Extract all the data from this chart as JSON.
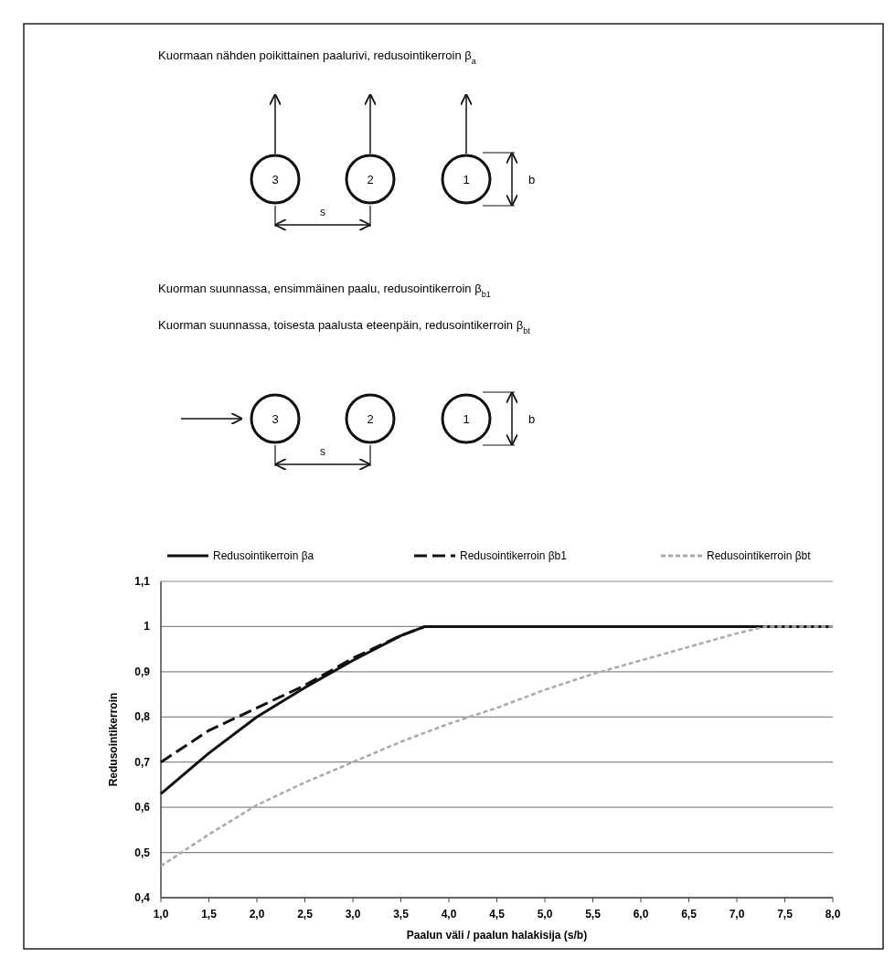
{
  "chart_data": {
    "type": "line",
    "annotations": [
      "Kuormaan nähden poikittainen paalurivi, redusointikerroin β$_{a}$",
      "3",
      "2",
      "1",
      "s",
      "b",
      "Kuorman suunnassa, ensimmäinen paalu, redusointikerroin β$_{b1}$",
      "Kuorman suunnassa, toisesta paalusta eteenpäin, redusointikerroin β$_{bt}$",
      "3",
      "2",
      "1",
      "s",
      "b"
    ],
    "xlabel": "Paalun väli / paalun halakisija (s/b)",
    "ylabel": "Redusointikerroin",
    "xlim": [
      1,
      8
    ],
    "ylim": [
      0.4,
      1.1
    ],
    "xticks": [
      {
        "value": 1,
        "label": "1,0"
      },
      {
        "value": 1.5,
        "label": "1,5"
      },
      {
        "value": 2,
        "label": "2,0"
      },
      {
        "value": 2.5,
        "label": "2,5"
      },
      {
        "value": 3,
        "label": "3,0"
      },
      {
        "value": 3.5,
        "label": "3,5"
      },
      {
        "value": 4,
        "label": "4,0"
      },
      {
        "value": 4.5,
        "label": "4,5"
      },
      {
        "value": 5,
        "label": "5,0"
      },
      {
        "value": 5.5,
        "label": "5,5"
      },
      {
        "value": 6,
        "label": "6,0"
      },
      {
        "value": 6.5,
        "label": "6,5"
      },
      {
        "value": 7,
        "label": "7,0"
      },
      {
        "value": 7.5,
        "label": "7,5"
      },
      {
        "value": 8,
        "label": "8,0"
      }
    ],
    "yticks": [
      {
        "value": 0.4,
        "label": "0,4"
      },
      {
        "value": 0.5,
        "label": "0,5"
      },
      {
        "value": 0.6,
        "label": "0,6"
      },
      {
        "value": 0.7,
        "label": "0,7"
      },
      {
        "value": 0.8,
        "label": "0,8"
      },
      {
        "value": 0.9,
        "label": "0,9"
      },
      1,
      {
        "value": 1.1,
        "label": "1,1"
      }
    ],
    "grid": "y",
    "legend": "top",
    "series": [
      {
        "name": "Redusointikerroin βa",
        "color": "#111111",
        "line_style": "solid",
        "x": [
          1,
          1.5,
          2,
          2.5,
          3,
          3.5,
          3.75,
          4,
          5,
          6,
          7,
          8
        ],
        "values": [
          0.63,
          0.72,
          0.8,
          0.865,
          0.925,
          0.98,
          1,
          1,
          1,
          1,
          1,
          1
        ]
      },
      {
        "name": "Redusointikerroin βb1",
        "color": "#111111",
        "line_style": "dashed",
        "x": [
          1,
          1.5,
          2,
          2.5,
          3,
          3.5,
          3.75,
          4,
          5,
          6,
          7,
          8
        ],
        "values": [
          0.7,
          0.77,
          0.82,
          0.87,
          0.93,
          0.98,
          1,
          1,
          1,
          1,
          1,
          1
        ]
      },
      {
        "name": "Redusointikerroin βbt",
        "color": "#aaaaaa",
        "line_style": "dotted",
        "x": [
          1,
          1.5,
          2,
          2.5,
          3,
          3.5,
          4,
          4.5,
          5,
          5.5,
          6,
          6.5,
          7,
          7.3,
          8
        ],
        "values": [
          0.47,
          0.54,
          0.605,
          0.655,
          0.7,
          0.745,
          0.785,
          0.82,
          0.86,
          0.895,
          0.925,
          0.955,
          0.985,
          1,
          1
        ]
      }
    ]
  }
}
